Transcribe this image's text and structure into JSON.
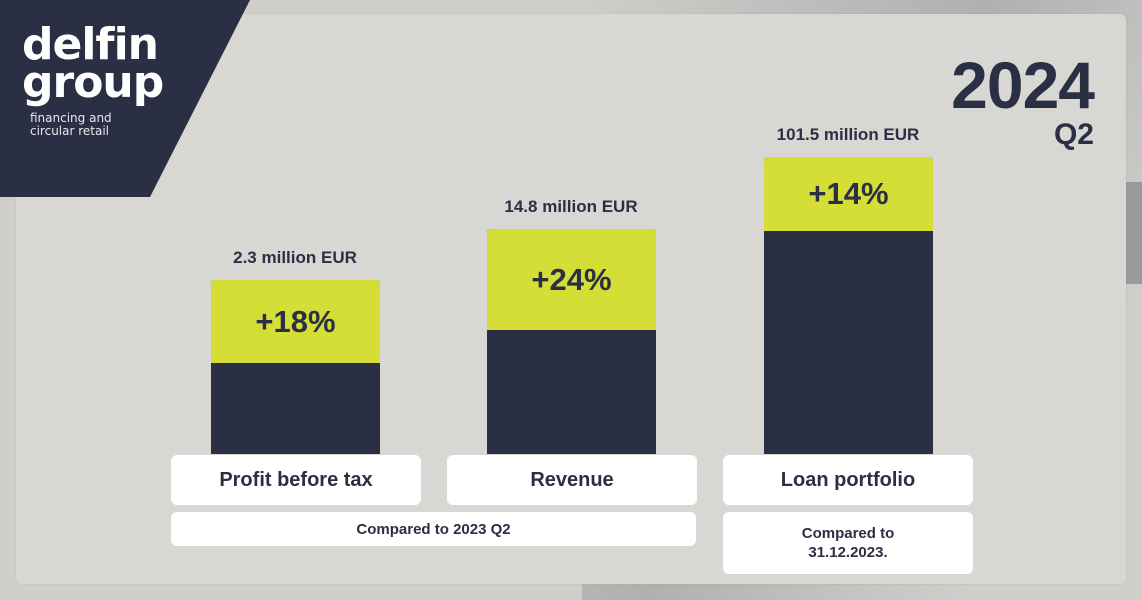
{
  "brand": {
    "name_line1": "delfin",
    "name_line2": "group",
    "tagline_line1": "financing and",
    "tagline_line2": "circular retail"
  },
  "period": {
    "year": "2024",
    "quarter": "Q2"
  },
  "colors": {
    "dark": "#2b2f44",
    "accent": "#d4de36",
    "box": "#ffffff",
    "background": "#d8d7d4"
  },
  "chart_data": {
    "type": "bar",
    "categories": [
      "Profit before tax",
      "Revenue",
      "Loan portfolio"
    ],
    "value_labels": [
      "2.3 million EUR",
      "14.8 million EUR",
      "101.5 million EUR"
    ],
    "growth_labels": [
      "+18%",
      "+24%",
      "+14%"
    ],
    "growth_percent": [
      18,
      24,
      14
    ],
    "relative_height": [
      0.58,
      0.75,
      0.99
    ]
  },
  "comparisons": {
    "first": "Compared to 2023 Q2",
    "second_line1": "Compared to",
    "second_line2": "31.12.2023."
  }
}
